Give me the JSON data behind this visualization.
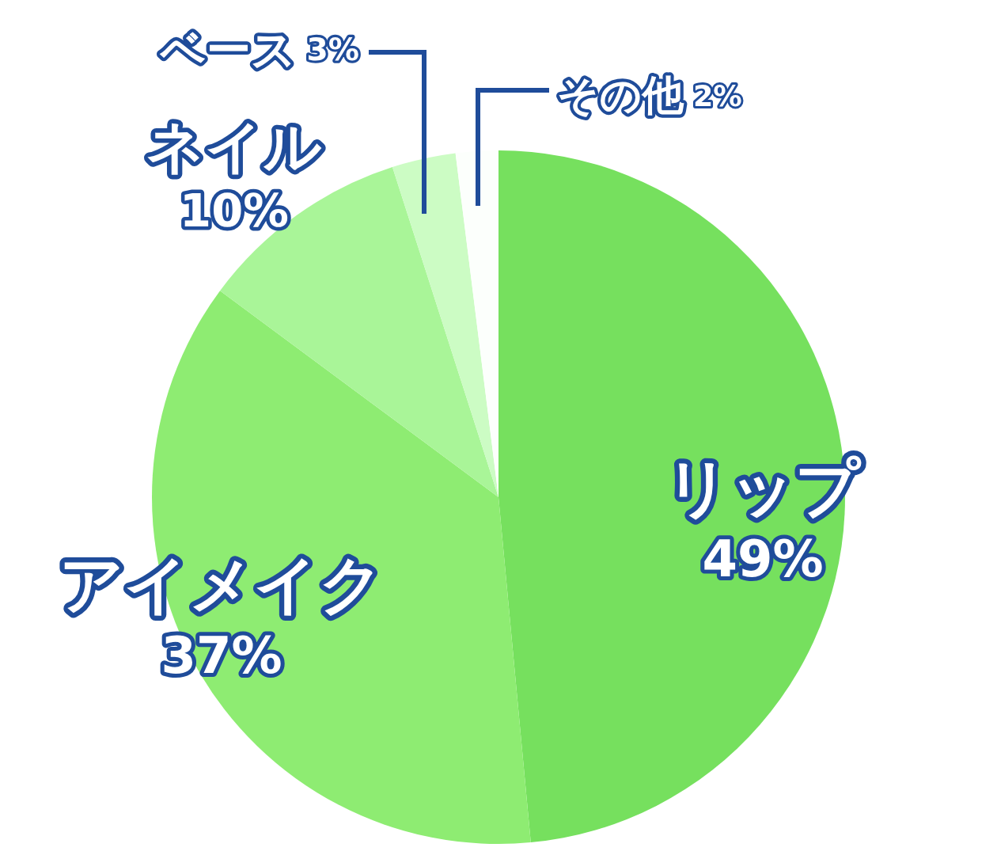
{
  "chart_data": {
    "type": "pie",
    "categories": [
      "リップ",
      "アイメイク",
      "ネイル",
      "ベース",
      "その他"
    ],
    "values": [
      49,
      37,
      10,
      3,
      2
    ],
    "value_labels": [
      "49%",
      "37%",
      "10%",
      "3%",
      "2%"
    ],
    "colors": [
      "#76e05e",
      "#8eec72",
      "#a9f598",
      "#ccfcc4",
      "#fcfffc"
    ]
  }
}
